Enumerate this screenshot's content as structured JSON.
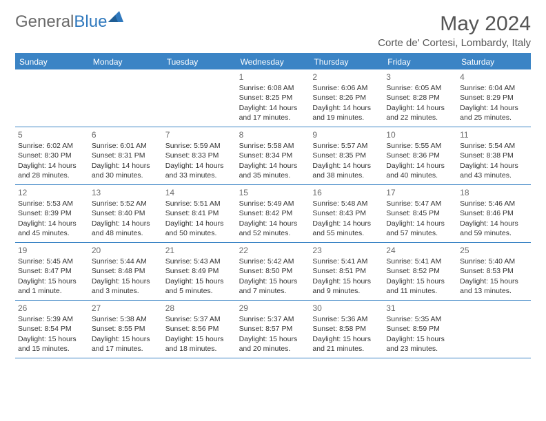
{
  "header": {
    "logo_general": "General",
    "logo_blue": "Blue",
    "month_title": "May 2024",
    "location": "Corte de' Cortesi, Lombardy, Italy"
  },
  "colors": {
    "accent": "#3b84c5",
    "text": "#333333",
    "gray": "#6a6a6a",
    "bg": "#ffffff"
  },
  "dayNames": [
    "Sunday",
    "Monday",
    "Tuesday",
    "Wednesday",
    "Thursday",
    "Friday",
    "Saturday"
  ],
  "startOffset": 3,
  "days": [
    {
      "n": "1",
      "sr": "6:08 AM",
      "ss": "8:25 PM",
      "dl": "14 hours and 17 minutes."
    },
    {
      "n": "2",
      "sr": "6:06 AM",
      "ss": "8:26 PM",
      "dl": "14 hours and 19 minutes."
    },
    {
      "n": "3",
      "sr": "6:05 AM",
      "ss": "8:28 PM",
      "dl": "14 hours and 22 minutes."
    },
    {
      "n": "4",
      "sr": "6:04 AM",
      "ss": "8:29 PM",
      "dl": "14 hours and 25 minutes."
    },
    {
      "n": "5",
      "sr": "6:02 AM",
      "ss": "8:30 PM",
      "dl": "14 hours and 28 minutes."
    },
    {
      "n": "6",
      "sr": "6:01 AM",
      "ss": "8:31 PM",
      "dl": "14 hours and 30 minutes."
    },
    {
      "n": "7",
      "sr": "5:59 AM",
      "ss": "8:33 PM",
      "dl": "14 hours and 33 minutes."
    },
    {
      "n": "8",
      "sr": "5:58 AM",
      "ss": "8:34 PM",
      "dl": "14 hours and 35 minutes."
    },
    {
      "n": "9",
      "sr": "5:57 AM",
      "ss": "8:35 PM",
      "dl": "14 hours and 38 minutes."
    },
    {
      "n": "10",
      "sr": "5:55 AM",
      "ss": "8:36 PM",
      "dl": "14 hours and 40 minutes."
    },
    {
      "n": "11",
      "sr": "5:54 AM",
      "ss": "8:38 PM",
      "dl": "14 hours and 43 minutes."
    },
    {
      "n": "12",
      "sr": "5:53 AM",
      "ss": "8:39 PM",
      "dl": "14 hours and 45 minutes."
    },
    {
      "n": "13",
      "sr": "5:52 AM",
      "ss": "8:40 PM",
      "dl": "14 hours and 48 minutes."
    },
    {
      "n": "14",
      "sr": "5:51 AM",
      "ss": "8:41 PM",
      "dl": "14 hours and 50 minutes."
    },
    {
      "n": "15",
      "sr": "5:49 AM",
      "ss": "8:42 PM",
      "dl": "14 hours and 52 minutes."
    },
    {
      "n": "16",
      "sr": "5:48 AM",
      "ss": "8:43 PM",
      "dl": "14 hours and 55 minutes."
    },
    {
      "n": "17",
      "sr": "5:47 AM",
      "ss": "8:45 PM",
      "dl": "14 hours and 57 minutes."
    },
    {
      "n": "18",
      "sr": "5:46 AM",
      "ss": "8:46 PM",
      "dl": "14 hours and 59 minutes."
    },
    {
      "n": "19",
      "sr": "5:45 AM",
      "ss": "8:47 PM",
      "dl": "15 hours and 1 minute."
    },
    {
      "n": "20",
      "sr": "5:44 AM",
      "ss": "8:48 PM",
      "dl": "15 hours and 3 minutes."
    },
    {
      "n": "21",
      "sr": "5:43 AM",
      "ss": "8:49 PM",
      "dl": "15 hours and 5 minutes."
    },
    {
      "n": "22",
      "sr": "5:42 AM",
      "ss": "8:50 PM",
      "dl": "15 hours and 7 minutes."
    },
    {
      "n": "23",
      "sr": "5:41 AM",
      "ss": "8:51 PM",
      "dl": "15 hours and 9 minutes."
    },
    {
      "n": "24",
      "sr": "5:41 AM",
      "ss": "8:52 PM",
      "dl": "15 hours and 11 minutes."
    },
    {
      "n": "25",
      "sr": "5:40 AM",
      "ss": "8:53 PM",
      "dl": "15 hours and 13 minutes."
    },
    {
      "n": "26",
      "sr": "5:39 AM",
      "ss": "8:54 PM",
      "dl": "15 hours and 15 minutes."
    },
    {
      "n": "27",
      "sr": "5:38 AM",
      "ss": "8:55 PM",
      "dl": "15 hours and 17 minutes."
    },
    {
      "n": "28",
      "sr": "5:37 AM",
      "ss": "8:56 PM",
      "dl": "15 hours and 18 minutes."
    },
    {
      "n": "29",
      "sr": "5:37 AM",
      "ss": "8:57 PM",
      "dl": "15 hours and 20 minutes."
    },
    {
      "n": "30",
      "sr": "5:36 AM",
      "ss": "8:58 PM",
      "dl": "15 hours and 21 minutes."
    },
    {
      "n": "31",
      "sr": "5:35 AM",
      "ss": "8:59 PM",
      "dl": "15 hours and 23 minutes."
    }
  ],
  "labels": {
    "sunrise": "Sunrise: ",
    "sunset": "Sunset: ",
    "daylight": "Daylight: "
  }
}
